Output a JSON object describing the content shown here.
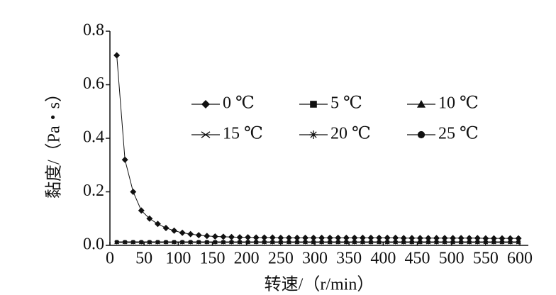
{
  "chart_data": {
    "type": "line",
    "x_label": "转速/（r/min）",
    "y_label": "黏度/（Pa・s）",
    "x": [
      10,
      22,
      34,
      46,
      58,
      70,
      82,
      94,
      106,
      118,
      130,
      142,
      154,
      166,
      178,
      190,
      202,
      214,
      226,
      238,
      250,
      262,
      274,
      286,
      298,
      310,
      322,
      334,
      346,
      358,
      370,
      382,
      394,
      406,
      418,
      430,
      442,
      454,
      466,
      478,
      490,
      502,
      514,
      526,
      538,
      550,
      562,
      574,
      586,
      598
    ],
    "series": [
      {
        "name": "0 ℃",
        "color": "#111111",
        "marker": "diamond",
        "values": [
          0.71,
          0.32,
          0.2,
          0.13,
          0.1,
          0.08,
          0.065,
          0.055,
          0.047,
          0.042,
          0.038,
          0.035,
          0.033,
          0.032,
          0.031,
          0.03,
          0.03,
          0.029,
          0.029,
          0.029,
          0.028,
          0.028,
          0.028,
          0.028,
          0.028,
          0.028,
          0.028,
          0.028,
          0.028,
          0.028,
          0.028,
          0.028,
          0.028,
          0.028,
          0.028,
          0.027,
          0.027,
          0.027,
          0.027,
          0.027,
          0.027,
          0.027,
          0.027,
          0.027,
          0.027,
          0.026,
          0.026,
          0.026,
          0.026,
          0.026
        ]
      },
      {
        "name": "5 ℃",
        "color": "#111111",
        "marker": "square",
        "values": [
          0.013,
          0.013,
          0.013,
          0.013,
          0.013,
          0.013,
          0.013,
          0.013,
          0.013,
          0.013,
          0.013,
          0.013,
          0.013,
          0.013,
          0.013,
          0.013,
          0.013,
          0.013,
          0.013,
          0.013,
          0.013,
          0.013,
          0.013,
          0.013,
          0.013,
          0.013,
          0.013,
          0.013,
          0.013,
          0.013,
          0.013,
          0.013,
          0.013,
          0.013,
          0.013,
          0.013,
          0.013,
          0.013,
          0.013,
          0.013,
          0.013,
          0.013,
          0.013,
          0.013,
          0.013,
          0.013,
          0.013,
          0.013,
          0.013,
          0.013
        ]
      },
      {
        "name": "10 ℃",
        "color": "#111111",
        "marker": "triangle",
        "values": [
          0.012,
          0.012,
          0.012,
          0.012,
          0.012,
          0.012,
          0.012,
          0.012,
          0.012,
          0.012,
          0.012,
          0.012,
          0.012,
          0.012,
          0.012,
          0.012,
          0.012,
          0.012,
          0.012,
          0.012,
          0.012,
          0.012,
          0.012,
          0.012,
          0.012,
          0.012,
          0.012,
          0.012,
          0.012,
          0.012,
          0.012,
          0.012,
          0.012,
          0.012,
          0.012,
          0.012,
          0.012,
          0.012,
          0.012,
          0.012,
          0.012,
          0.012,
          0.012,
          0.012,
          0.012,
          0.012,
          0.012,
          0.012,
          0.012,
          0.012
        ]
      },
      {
        "name": "15 ℃",
        "color": "#111111",
        "marker": "x",
        "values": [
          0.011,
          0.011,
          0.011,
          0.011,
          0.011,
          0.011,
          0.011,
          0.011,
          0.011,
          0.011,
          0.011,
          0.011,
          0.011,
          0.011,
          0.011,
          0.011,
          0.011,
          0.011,
          0.011,
          0.011,
          0.011,
          0.011,
          0.011,
          0.011,
          0.011,
          0.011,
          0.011,
          0.011,
          0.011,
          0.011,
          0.011,
          0.011,
          0.011,
          0.011,
          0.011,
          0.011,
          0.011,
          0.011,
          0.011,
          0.011,
          0.011,
          0.011,
          0.011,
          0.011,
          0.011,
          0.011,
          0.011,
          0.011,
          0.011,
          0.011
        ]
      },
      {
        "name": "20 ℃",
        "color": "#111111",
        "marker": "asterisk",
        "values": [
          0.012,
          0.012,
          0.012,
          0.012,
          0.012,
          0.012,
          0.012,
          0.012,
          0.012,
          0.012,
          0.012,
          0.012,
          0.012,
          0.012,
          0.012,
          0.012,
          0.012,
          0.012,
          0.012,
          0.012,
          0.012,
          0.012,
          0.012,
          0.012,
          0.012,
          0.012,
          0.012,
          0.012,
          0.012,
          0.012,
          0.012,
          0.012,
          0.012,
          0.012,
          0.012,
          0.012,
          0.012,
          0.012,
          0.012,
          0.012,
          0.012,
          0.012,
          0.012,
          0.012,
          0.012,
          0.012,
          0.012,
          0.012,
          0.012,
          0.012
        ]
      },
      {
        "name": "25 ℃",
        "color": "#111111",
        "marker": "circle",
        "values": [
          0.013,
          0.013,
          0.013,
          0.013,
          0.013,
          0.013,
          0.013,
          0.013,
          0.013,
          0.013,
          0.013,
          0.013,
          0.013,
          0.013,
          0.013,
          0.013,
          0.013,
          0.013,
          0.013,
          0.013,
          0.013,
          0.013,
          0.013,
          0.013,
          0.013,
          0.013,
          0.013,
          0.013,
          0.013,
          0.013,
          0.013,
          0.013,
          0.013,
          0.013,
          0.013,
          0.013,
          0.013,
          0.013,
          0.013,
          0.013,
          0.013,
          0.013,
          0.013,
          0.013,
          0.013,
          0.013,
          0.013,
          0.013,
          0.013,
          0.013
        ]
      }
    ],
    "xlim": [
      0,
      600
    ],
    "xticks": [
      0,
      50,
      100,
      150,
      200,
      250,
      300,
      350,
      400,
      450,
      500,
      550,
      600
    ],
    "ylim": [
      0,
      0.8
    ],
    "yticks": [
      {
        "value": 0,
        "label": "0.0"
      },
      0.2,
      0.4,
      0.6,
      0.8
    ],
    "grid": false
  }
}
